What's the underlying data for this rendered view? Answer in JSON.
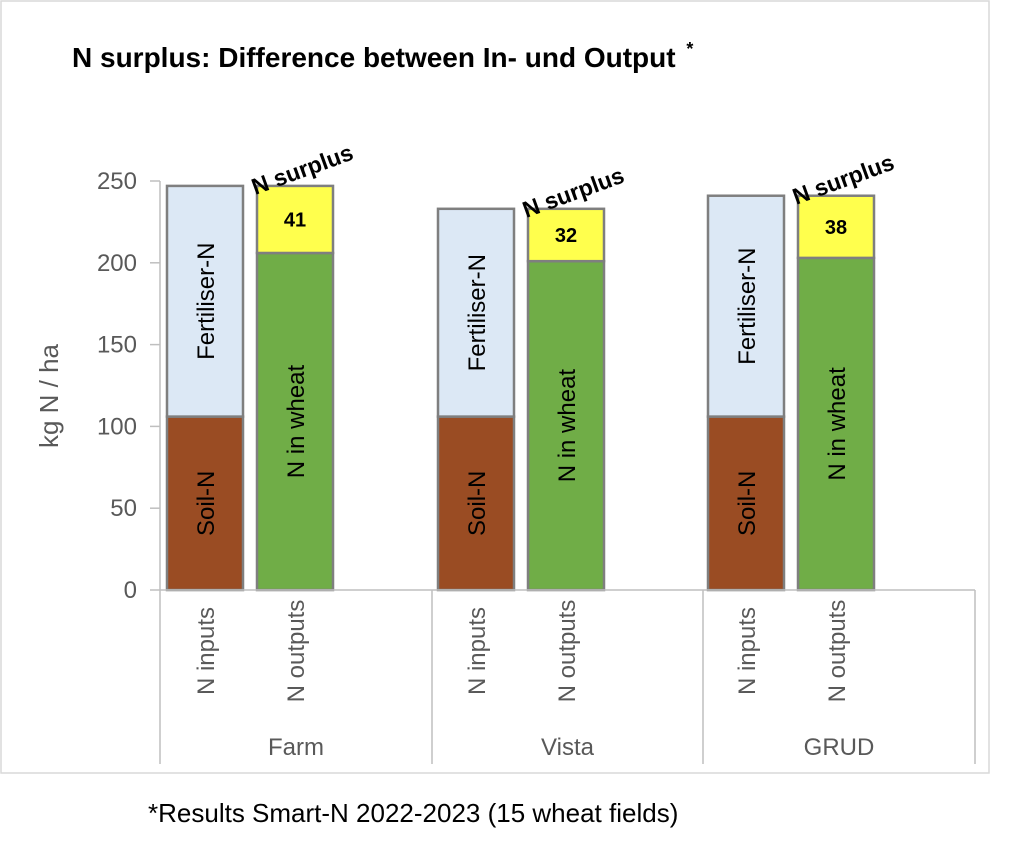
{
  "chart_data": {
    "type": "bar",
    "title": "N surplus: Difference between In- und Output",
    "title_marker": "*",
    "ylabel": "kg N / ha",
    "ylim": [
      0,
      250
    ],
    "yticks": [
      "0",
      "50",
      "100",
      "150",
      "200",
      "250"
    ],
    "grid": false,
    "groups": [
      {
        "name": "Farm",
        "bars": [
          {
            "label": "N inputs",
            "segments": [
              {
                "name": "Soil-N",
                "value": 106,
                "color": "#9a4c23"
              },
              {
                "name": "Fertiliser-N",
                "value": 141,
                "color": "#dce8f5"
              }
            ]
          },
          {
            "label": "N outputs",
            "segments": [
              {
                "name": "N in wheat",
                "value": 206,
                "color": "#70ad47"
              },
              {
                "name": "N surplus",
                "value": 41,
                "value_label": "41",
                "color": "#ffff4d"
              }
            ]
          }
        ]
      },
      {
        "name": "Vista",
        "bars": [
          {
            "label": "N inputs",
            "segments": [
              {
                "name": "Soil-N",
                "value": 106,
                "color": "#9a4c23"
              },
              {
                "name": "Fertiliser-N",
                "value": 127,
                "color": "#dce8f5"
              }
            ]
          },
          {
            "label": "N outputs",
            "segments": [
              {
                "name": "N in wheat",
                "value": 201,
                "color": "#70ad47"
              },
              {
                "name": "N surplus",
                "value": 32,
                "value_label": "32",
                "color": "#ffff4d"
              }
            ]
          }
        ]
      },
      {
        "name": "GRUD",
        "bars": [
          {
            "label": "N inputs",
            "segments": [
              {
                "name": "Soil-N",
                "value": 106,
                "color": "#9a4c23"
              },
              {
                "name": "Fertiliser-N",
                "value": 135,
                "color": "#dce8f5"
              }
            ]
          },
          {
            "label": "N outputs",
            "segments": [
              {
                "name": "N in wheat",
                "value": 203,
                "color": "#70ad47"
              },
              {
                "name": "N surplus",
                "value": 38,
                "value_label": "38",
                "color": "#ffff4d"
              }
            ]
          }
        ]
      }
    ]
  },
  "footnote": "*Results Smart-N 2022-2023 (15 wheat fields)"
}
